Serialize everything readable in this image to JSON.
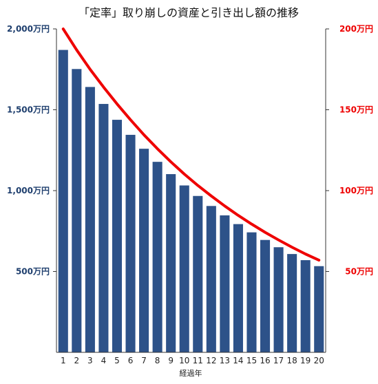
{
  "chart_data": {
    "type": "bar",
    "title": "「定率」取り崩しの資産と引き出し額の推移",
    "xlabel": "経過年",
    "ylabel": "",
    "ylabel_right": "",
    "categories": [
      "1",
      "2",
      "3",
      "4",
      "5",
      "6",
      "7",
      "8",
      "9",
      "10",
      "11",
      "12",
      "13",
      "14",
      "15",
      "16",
      "17",
      "18",
      "19",
      "20"
    ],
    "series": [
      {
        "type": "bar",
        "axis": "left",
        "color": "#2d5289",
        "values": [
          1870,
          1752,
          1641,
          1536,
          1438,
          1345,
          1259,
          1178,
          1102,
          1032,
          967,
          905,
          847,
          793,
          742,
          695,
          650,
          608,
          570,
          533
        ]
      },
      {
        "type": "line",
        "axis": "right",
        "color": "#ee0000",
        "values": [
          200,
          187,
          175,
          164,
          153.6,
          143.8,
          134.5,
          125.9,
          117.8,
          110.2,
          103.2,
          96.7,
          90.5,
          84.7,
          79.3,
          74.2,
          69.5,
          65,
          60.8,
          57
        ]
      }
    ],
    "y_left": {
      "range": [
        0,
        2000
      ],
      "ticks": [
        {
          "value": 500,
          "label": "500万円"
        },
        {
          "value": 1000,
          "label": "1,000万円"
        },
        {
          "value": 1500,
          "label": "1,500万円"
        },
        {
          "value": 2000,
          "label": "2,000万円"
        }
      ],
      "color": "#1f3f6e"
    },
    "y_right": {
      "range": [
        0,
        200
      ],
      "ticks": [
        {
          "value": 50,
          "label": "50万円"
        },
        {
          "value": 100,
          "label": "100万円"
        },
        {
          "value": 150,
          "label": "150万円"
        },
        {
          "value": 200,
          "label": "200万円"
        }
      ],
      "color": "#ee0000"
    },
    "grid": false,
    "legend": "none"
  }
}
